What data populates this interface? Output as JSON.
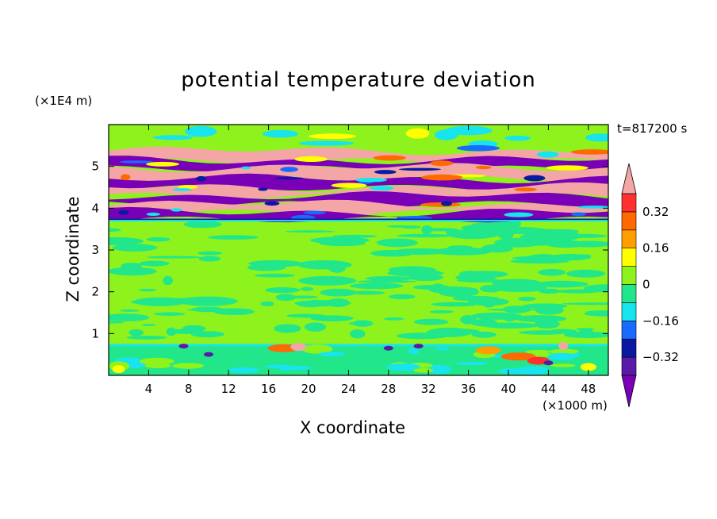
{
  "chart_data": {
    "type": "heatmap",
    "title": "potential temperature deviation",
    "xlabel": "X coordinate",
    "ylabel": "Z coordinate",
    "x_unit": "(×1000 m)",
    "y_unit": "(×1E4 m)",
    "time_label": "t=817200 s",
    "xlim": [
      0,
      50
    ],
    "ylim": [
      0,
      6
    ],
    "x_ticks": [
      4,
      8,
      12,
      16,
      20,
      24,
      28,
      32,
      36,
      40,
      44,
      48
    ],
    "y_ticks": [
      1,
      2,
      3,
      4,
      5
    ],
    "colorbar": {
      "levels": [
        -0.4,
        -0.32,
        -0.24,
        -0.16,
        -0.08,
        0,
        0.08,
        0.16,
        0.24,
        0.32,
        0.4
      ],
      "tick_labels": [
        "0.32",
        "0.16",
        "0",
        "−0.16",
        "−0.32"
      ],
      "colors": [
        "#7a00b8",
        "#5a1aa8",
        "#0a1aa0",
        "#1a6aff",
        "#18e4ee",
        "#22e68a",
        "#8ef21c",
        "#ffff00",
        "#ff9e00",
        "#ff6a00",
        "#ff3030",
        "#f4a6a6"
      ],
      "extend": "both"
    },
    "layers": [
      {
        "z_range": [
          0,
          0.8
        ],
        "description_value": "near-surface band mostly 0 to 0.08 with warm patches near x 16-20 and 36-46"
      },
      {
        "z_range": [
          0.8,
          3.7
        ],
        "description_value": "mid layer weak deviations between -0.08 and 0.08"
      },
      {
        "z_range": [
          3.7,
          5.4
        ],
        "description_value": "upper layer alternating strong positive (>0.4) and negative (<-0.4) sheets"
      },
      {
        "z_range": [
          5.4,
          6.0
        ],
        "description_value": "top layer near 0 to 0.08"
      }
    ]
  }
}
